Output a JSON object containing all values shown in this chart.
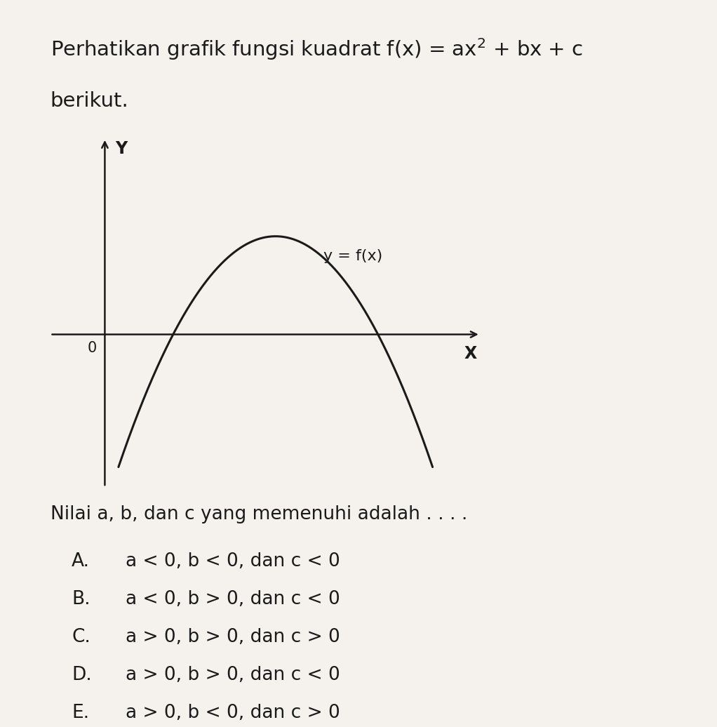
{
  "title_line1": "Perhatikan grafik fungsi kuadrat f(x) = ax² + bx + c",
  "title_line2": "berikut.",
  "curve_label": "y = f(x)",
  "question_text": "Nilai a, b, dan c yang memenuhi adalah . . . .",
  "options": [
    "A.   a < 0, b < 0, dan c < 0",
    "B.   a < 0, b > 0, dan c < 0",
    "C.   a > 0, b > 0, dan c > 0",
    "D.   a > 0, b > 0, dan c < 0",
    "E.   a > 0, b < 0, dan c > 0"
  ],
  "x_root1": 1.0,
  "x_root2": 4.0,
  "parabola_a": -1.0,
  "background_color": "#f5f2ee",
  "text_color": "#1a1a1a",
  "curve_color": "#1a1a1a",
  "axis_color": "#1a1a1a",
  "title_fontsize": 21,
  "label_fontsize": 17,
  "curve_label_fontsize": 16,
  "option_fontsize": 19,
  "question_fontsize": 19,
  "x_min": -0.8,
  "x_max": 5.5,
  "y_min": -3.5,
  "y_max": 4.5
}
